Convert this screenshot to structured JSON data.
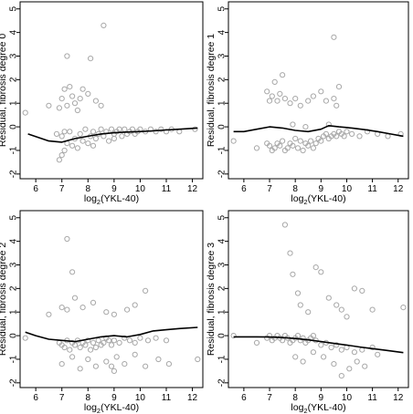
{
  "chart_data": [
    {
      "type": "scatter",
      "title": "",
      "xlabel": "log2(YKL-40)",
      "ylabel": "Residual, fibrosis degree 0",
      "xlim": [
        5.4,
        12.4
      ],
      "ylim": [
        -2.2,
        5.3
      ],
      "xticks": [
        6,
        7,
        8,
        9,
        10,
        11,
        12
      ],
      "yticks": [
        -2,
        -1,
        0,
        1,
        2,
        3,
        4,
        5
      ],
      "grid": false,
      "points": [
        [
          5.6,
          0.6
        ],
        [
          6.5,
          0.9
        ],
        [
          6.9,
          0.8
        ],
        [
          7.0,
          1.2
        ],
        [
          7.1,
          1.6
        ],
        [
          7.2,
          0.9
        ],
        [
          7.3,
          1.7
        ],
        [
          7.4,
          1.3
        ],
        [
          7.5,
          1.0
        ],
        [
          7.6,
          0.7
        ],
        [
          7.7,
          1.2
        ],
        [
          7.8,
          1.6
        ],
        [
          8.0,
          1.4
        ],
        [
          8.1,
          2.9
        ],
        [
          8.3,
          1.1
        ],
        [
          8.5,
          0.9
        ],
        [
          8.6,
          4.3
        ],
        [
          7.2,
          3.0
        ],
        [
          7.0,
          -0.4
        ],
        [
          7.1,
          -1.0
        ],
        [
          7.2,
          -0.7
        ],
        [
          7.3,
          -0.2
        ],
        [
          7.4,
          -0.8
        ],
        [
          7.5,
          -0.5
        ],
        [
          7.6,
          -0.9
        ],
        [
          7.7,
          -0.3
        ],
        [
          7.8,
          -0.6
        ],
        [
          7.9,
          -0.1
        ],
        [
          8.0,
          -0.7
        ],
        [
          8.1,
          -0.4
        ],
        [
          8.2,
          -0.2
        ],
        [
          8.3,
          -0.5
        ],
        [
          8.4,
          -0.3
        ],
        [
          8.5,
          -0.1
        ],
        [
          8.6,
          -0.4
        ],
        [
          8.7,
          -0.2
        ],
        [
          8.8,
          -0.6
        ],
        [
          8.9,
          -0.1
        ],
        [
          9.0,
          -0.3
        ],
        [
          9.1,
          -0.2
        ],
        [
          9.2,
          -0.1
        ],
        [
          9.3,
          -0.4
        ],
        [
          9.4,
          -0.1
        ],
        [
          9.5,
          -0.3
        ],
        [
          9.6,
          -0.2
        ],
        [
          9.7,
          -0.1
        ],
        [
          9.8,
          -0.3
        ],
        [
          9.9,
          -0.2
        ],
        [
          10.0,
          -0.1
        ],
        [
          10.2,
          -0.2
        ],
        [
          10.4,
          -0.1
        ],
        [
          10.6,
          -0.2
        ],
        [
          10.8,
          -0.1
        ],
        [
          11.0,
          -0.2
        ],
        [
          11.2,
          -0.1
        ],
        [
          11.5,
          -0.2
        ],
        [
          12.1,
          -0.1
        ],
        [
          6.9,
          -1.4
        ],
        [
          7.0,
          -1.2
        ],
        [
          6.8,
          -0.3
        ],
        [
          7.1,
          -0.2
        ],
        [
          8.2,
          -0.8
        ],
        [
          9.0,
          -0.5
        ]
      ],
      "smooth": [
        [
          5.7,
          -0.3
        ],
        [
          6.5,
          -0.6
        ],
        [
          7.0,
          -0.65
        ],
        [
          7.5,
          -0.5
        ],
        [
          8.0,
          -0.4
        ],
        [
          8.5,
          -0.3
        ],
        [
          9.0,
          -0.25
        ],
        [
          9.5,
          -0.22
        ],
        [
          10.0,
          -0.2
        ],
        [
          10.5,
          -0.17
        ],
        [
          11.0,
          -0.13
        ],
        [
          11.5,
          -0.1
        ],
        [
          12.2,
          -0.05
        ]
      ]
    },
    {
      "type": "scatter",
      "title": "",
      "xlabel": "log2(YKL-40)",
      "ylabel": "Residual, fibrosis degree 1",
      "xlim": [
        5.4,
        12.4
      ],
      "ylim": [
        -2.2,
        5.3
      ],
      "xticks": [
        6,
        7,
        8,
        9,
        10,
        11,
        12
      ],
      "yticks": [
        -2,
        -1,
        0,
        1,
        2,
        3,
        4,
        5
      ],
      "grid": false,
      "points": [
        [
          5.6,
          -0.6
        ],
        [
          6.5,
          -0.9
        ],
        [
          6.9,
          -0.7
        ],
        [
          7.0,
          -0.8
        ],
        [
          7.1,
          -1.0
        ],
        [
          7.2,
          -0.9
        ],
        [
          7.3,
          -0.7
        ],
        [
          7.4,
          -0.8
        ],
        [
          7.5,
          -0.6
        ],
        [
          7.6,
          -1.0
        ],
        [
          7.7,
          -0.9
        ],
        [
          7.8,
          -0.7
        ],
        [
          7.9,
          -0.8
        ],
        [
          8.0,
          -0.5
        ],
        [
          8.1,
          -0.9
        ],
        [
          8.2,
          -0.6
        ],
        [
          8.3,
          -1.0
        ],
        [
          8.4,
          -0.7
        ],
        [
          8.5,
          -0.8
        ],
        [
          8.6,
          -0.6
        ],
        [
          8.7,
          -0.9
        ],
        [
          8.8,
          -0.7
        ],
        [
          8.9,
          -0.5
        ],
        [
          9.0,
          -0.6
        ],
        [
          9.1,
          -0.4
        ],
        [
          9.2,
          -0.3
        ],
        [
          9.3,
          -0.5
        ],
        [
          9.4,
          -0.4
        ],
        [
          9.5,
          -0.3
        ],
        [
          9.6,
          -0.4
        ],
        [
          9.7,
          -0.2
        ],
        [
          9.8,
          -0.3
        ],
        [
          9.9,
          -0.4
        ],
        [
          10.0,
          -0.2
        ],
        [
          10.2,
          -0.3
        ],
        [
          10.5,
          -0.4
        ],
        [
          10.8,
          -0.2
        ],
        [
          11.2,
          -0.3
        ],
        [
          11.6,
          -0.4
        ],
        [
          12.1,
          -0.3
        ],
        [
          6.9,
          1.5
        ],
        [
          7.0,
          1.1
        ],
        [
          7.1,
          1.3
        ],
        [
          7.3,
          1.1
        ],
        [
          7.4,
          1.4
        ],
        [
          7.6,
          1.2
        ],
        [
          7.8,
          1.0
        ],
        [
          8.0,
          1.2
        ],
        [
          8.2,
          0.9
        ],
        [
          8.5,
          1.1
        ],
        [
          8.7,
          1.3
        ],
        [
          9.0,
          1.5
        ],
        [
          9.2,
          1.1
        ],
        [
          9.5,
          1.2
        ],
        [
          9.6,
          0.9
        ],
        [
          9.7,
          1.7
        ],
        [
          7.5,
          2.2
        ],
        [
          7.2,
          1.9
        ],
        [
          9.5,
          3.8
        ],
        [
          9.3,
          0.1
        ],
        [
          8.4,
          0.0
        ],
        [
          7.9,
          0.1
        ]
      ],
      "smooth": [
        [
          5.6,
          -0.2
        ],
        [
          6.0,
          -0.2
        ],
        [
          6.5,
          -0.1
        ],
        [
          7.0,
          0.0
        ],
        [
          7.5,
          -0.05
        ],
        [
          8.0,
          -0.15
        ],
        [
          8.5,
          -0.2
        ],
        [
          9.0,
          -0.1
        ],
        [
          9.3,
          0.05
        ],
        [
          9.7,
          0.0
        ],
        [
          10.2,
          -0.05
        ],
        [
          10.7,
          -0.12
        ],
        [
          11.2,
          -0.2
        ],
        [
          11.7,
          -0.3
        ],
        [
          12.2,
          -0.4
        ]
      ]
    },
    {
      "type": "scatter",
      "title": "",
      "xlabel": "log2(YKL-40)",
      "ylabel": "Residual, fibrosis degree 2",
      "xlim": [
        5.4,
        12.4
      ],
      "ylim": [
        -2.2,
        5.3
      ],
      "xticks": [
        6,
        7,
        8,
        9,
        10,
        11,
        12
      ],
      "yticks": [
        -2,
        -1,
        0,
        1,
        2,
        3,
        4,
        5
      ],
      "grid": false,
      "points": [
        [
          5.6,
          -0.1
        ],
        [
          6.5,
          0.9
        ],
        [
          6.9,
          -0.3
        ],
        [
          7.0,
          -0.4
        ],
        [
          7.1,
          -0.5
        ],
        [
          7.2,
          -0.2
        ],
        [
          7.3,
          -0.6
        ],
        [
          7.4,
          -0.3
        ],
        [
          7.5,
          -0.4
        ],
        [
          7.6,
          -0.2
        ],
        [
          7.7,
          -0.5
        ],
        [
          7.8,
          -0.3
        ],
        [
          7.9,
          -0.4
        ],
        [
          8.0,
          -0.2
        ],
        [
          8.1,
          -0.6
        ],
        [
          8.2,
          -0.3
        ],
        [
          8.3,
          -0.5
        ],
        [
          8.4,
          -0.2
        ],
        [
          8.5,
          -0.4
        ],
        [
          8.6,
          -0.3
        ],
        [
          8.7,
          -0.1
        ],
        [
          8.8,
          -0.2
        ],
        [
          8.9,
          -0.4
        ],
        [
          9.0,
          -0.2
        ],
        [
          9.2,
          -0.3
        ],
        [
          9.4,
          -0.1
        ],
        [
          9.6,
          -0.2
        ],
        [
          9.8,
          -0.3
        ],
        [
          10.0,
          -0.1
        ],
        [
          10.3,
          -0.2
        ],
        [
          10.6,
          -0.1
        ],
        [
          11.0,
          -0.2
        ],
        [
          7.0,
          1.2
        ],
        [
          7.2,
          1.1
        ],
        [
          7.5,
          1.6
        ],
        [
          7.8,
          1.2
        ],
        [
          8.2,
          1.4
        ],
        [
          8.7,
          1.0
        ],
        [
          9.0,
          0.9
        ],
        [
          9.5,
          1.1
        ],
        [
          9.8,
          1.3
        ],
        [
          10.2,
          1.9
        ],
        [
          7.2,
          4.1
        ],
        [
          7.4,
          2.7
        ],
        [
          7.0,
          -1.2
        ],
        [
          7.4,
          -0.9
        ],
        [
          7.7,
          -1.4
        ],
        [
          8.0,
          -1.0
        ],
        [
          8.3,
          -1.3
        ],
        [
          8.7,
          -1.1
        ],
        [
          9.0,
          -1.5
        ],
        [
          9.4,
          -1.2
        ],
        [
          9.8,
          -0.8
        ],
        [
          10.2,
          -1.3
        ],
        [
          10.7,
          -1.0
        ],
        [
          11.1,
          -1.2
        ],
        [
          12.2,
          -1.0
        ],
        [
          8.9,
          -1.3
        ],
        [
          9.1,
          -0.9
        ]
      ],
      "smooth": [
        [
          5.6,
          0.15
        ],
        [
          6.0,
          0.0
        ],
        [
          6.5,
          -0.15
        ],
        [
          7.0,
          -0.2
        ],
        [
          7.5,
          -0.25
        ],
        [
          8.0,
          -0.15
        ],
        [
          8.5,
          -0.05
        ],
        [
          9.0,
          0.0
        ],
        [
          9.5,
          -0.05
        ],
        [
          10.0,
          0.05
        ],
        [
          10.5,
          0.2
        ],
        [
          11.0,
          0.25
        ],
        [
          11.5,
          0.3
        ],
        [
          12.2,
          0.35
        ]
      ]
    },
    {
      "type": "scatter",
      "title": "",
      "xlabel": "log2(YKL-40)",
      "ylabel": "Residual, fibrosis degree 3",
      "xlim": [
        5.4,
        12.4
      ],
      "ylim": [
        -2.2,
        5.3
      ],
      "xticks": [
        6,
        7,
        8,
        9,
        10,
        11,
        12
      ],
      "yticks": [
        -2,
        -1,
        0,
        1,
        2,
        3,
        4,
        5
      ],
      "grid": false,
      "points": [
        [
          5.6,
          0.0
        ],
        [
          6.5,
          -0.3
        ],
        [
          6.9,
          -0.1
        ],
        [
          7.0,
          0.0
        ],
        [
          7.1,
          -0.2
        ],
        [
          7.2,
          -0.1
        ],
        [
          7.3,
          0.0
        ],
        [
          7.4,
          -0.1
        ],
        [
          7.5,
          -0.2
        ],
        [
          7.6,
          0.0
        ],
        [
          7.7,
          -0.1
        ],
        [
          7.8,
          -0.3
        ],
        [
          7.9,
          -0.2
        ],
        [
          8.0,
          -0.1
        ],
        [
          8.1,
          0.0
        ],
        [
          8.2,
          -0.2
        ],
        [
          8.3,
          -0.1
        ],
        [
          8.4,
          -0.3
        ],
        [
          8.5,
          -0.2
        ],
        [
          8.6,
          -0.1
        ],
        [
          8.7,
          0.0
        ],
        [
          8.8,
          -0.2
        ],
        [
          9.0,
          -0.4
        ],
        [
          9.2,
          -0.3
        ],
        [
          9.4,
          -0.5
        ],
        [
          9.6,
          -0.4
        ],
        [
          9.8,
          -0.6
        ],
        [
          10.0,
          -0.5
        ],
        [
          10.3,
          -0.7
        ],
        [
          10.6,
          -0.6
        ],
        [
          11.0,
          -0.5
        ],
        [
          7.6,
          4.7
        ],
        [
          7.8,
          3.5
        ],
        [
          7.9,
          2.6
        ],
        [
          8.1,
          1.8
        ],
        [
          8.2,
          1.3
        ],
        [
          8.5,
          1.0
        ],
        [
          8.8,
          2.9
        ],
        [
          9.0,
          2.7
        ],
        [
          9.3,
          1.6
        ],
        [
          9.6,
          1.3
        ],
        [
          9.8,
          1.1
        ],
        [
          10.0,
          0.8
        ],
        [
          10.3,
          2.0
        ],
        [
          10.6,
          1.9
        ],
        [
          11.0,
          1.1
        ],
        [
          12.2,
          1.2
        ],
        [
          8.0,
          -0.9
        ],
        [
          8.3,
          -1.1
        ],
        [
          8.7,
          -0.7
        ],
        [
          9.1,
          -0.9
        ],
        [
          9.5,
          -1.2
        ],
        [
          9.8,
          -1.7
        ],
        [
          10.1,
          -1.4
        ],
        [
          10.4,
          -1.1
        ],
        [
          10.7,
          -1.3
        ],
        [
          11.2,
          -0.8
        ]
      ],
      "smooth": [
        [
          5.6,
          -0.05
        ],
        [
          6.5,
          -0.05
        ],
        [
          7.0,
          -0.06
        ],
        [
          7.5,
          -0.08
        ],
        [
          8.0,
          -0.12
        ],
        [
          8.5,
          -0.18
        ],
        [
          9.0,
          -0.25
        ],
        [
          9.5,
          -0.33
        ],
        [
          10.0,
          -0.4
        ],
        [
          10.5,
          -0.48
        ],
        [
          11.0,
          -0.55
        ],
        [
          11.5,
          -0.62
        ],
        [
          12.2,
          -0.72
        ]
      ]
    }
  ]
}
